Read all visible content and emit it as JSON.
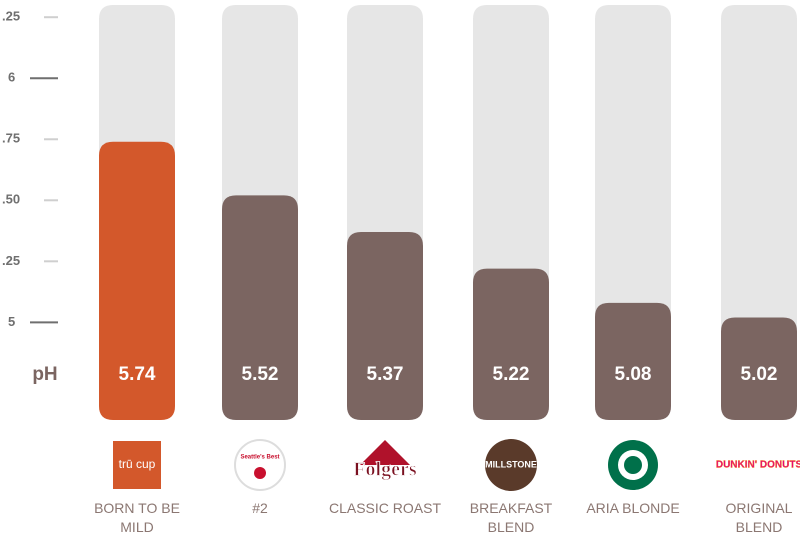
{
  "chart_data": {
    "type": "bar",
    "axis_label": "pH",
    "categories": [
      "BORN TO BE MILD",
      "#2",
      "CLASSIC ROAST",
      "BREAKFAST BLEND",
      "ARIA BLONDE",
      "ORIGINAL BLEND"
    ],
    "logos": [
      "trū cup",
      "Seattle's Best",
      "Folgers",
      "MILLSTONE",
      null,
      "DUNKIN' DONUTS"
    ],
    "values": [
      5.74,
      5.52,
      5.37,
      5.22,
      5.08,
      5.02
    ],
    "colors": [
      "#d3582b",
      "#7b6561",
      "#7b6561",
      "#7b6561",
      "#7b6561",
      "#7b6561"
    ],
    "track_color": "#e6e6e6",
    "ylim": [
      4.6,
      6.3
    ],
    "yticks": [
      {
        "value": 6.25,
        "label": ".25"
      },
      6,
      {
        "value": 5.75,
        "label": ".75"
      },
      {
        "value": 5.5,
        "label": ".50"
      },
      {
        "value": 5.25,
        "label": ".25"
      },
      5
    ]
  }
}
